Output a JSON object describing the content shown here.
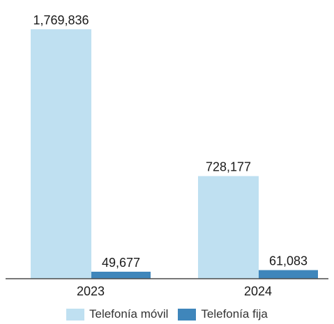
{
  "chart_data": {
    "type": "bar",
    "categories": [
      "2023",
      "2024"
    ],
    "series": [
      {
        "name": "Telefonía móvil",
        "values": [
          1769836,
          728177
        ],
        "labels": [
          "1,769,836",
          "728,177"
        ],
        "color": "#bfe0f1"
      },
      {
        "name": "Telefonía fija",
        "values": [
          49677,
          61083
        ],
        "labels": [
          "49,677",
          "61,083"
        ],
        "color": "#3f86bb"
      }
    ],
    "ylim": [
      0,
      1769836
    ],
    "grid": false,
    "legend": "bottom"
  }
}
